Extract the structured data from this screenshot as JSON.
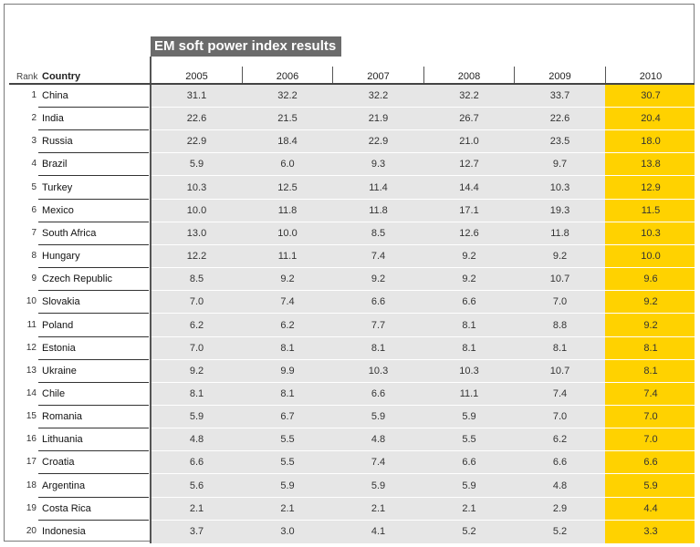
{
  "title": "EM soft power index results",
  "headers": {
    "rank": "Rank",
    "country": "Country"
  },
  "colors": {
    "title_bg": "#6b6b6b",
    "panel_grey": "#e6e6e6",
    "highlight": "#ffd200"
  },
  "chart_data": {
    "type": "table",
    "title": "EM soft power index results",
    "columns": [
      "Rank",
      "Country",
      "2005",
      "2006",
      "2007",
      "2008",
      "2009",
      "2010"
    ],
    "years": [
      "2005",
      "2006",
      "2007",
      "2008",
      "2009",
      "2010"
    ],
    "highlighted_column": "2010",
    "rows": [
      {
        "rank": "1",
        "country": "China",
        "values": [
          "31.1",
          "32.2",
          "32.2",
          "32.2",
          "33.7",
          "30.7"
        ]
      },
      {
        "rank": "2",
        "country": "India",
        "values": [
          "22.6",
          "21.5",
          "21.9",
          "26.7",
          "22.6",
          "20.4"
        ]
      },
      {
        "rank": "3",
        "country": "Russia",
        "values": [
          "22.9",
          "18.4",
          "22.9",
          "21.0",
          "23.5",
          "18.0"
        ]
      },
      {
        "rank": "4",
        "country": "Brazil",
        "values": [
          "5.9",
          "6.0",
          "9.3",
          "12.7",
          "9.7",
          "13.8"
        ]
      },
      {
        "rank": "5",
        "country": "Turkey",
        "values": [
          "10.3",
          "12.5",
          "11.4",
          "14.4",
          "10.3",
          "12.9"
        ]
      },
      {
        "rank": "6",
        "country": "Mexico",
        "values": [
          "10.0",
          "11.8",
          "11.8",
          "17.1",
          "19.3",
          "11.5"
        ]
      },
      {
        "rank": "7",
        "country": "South Africa",
        "values": [
          "13.0",
          "10.0",
          "8.5",
          "12.6",
          "11.8",
          "10.3"
        ]
      },
      {
        "rank": "8",
        "country": "Hungary",
        "values": [
          "12.2",
          "11.1",
          "7.4",
          "9.2",
          "9.2",
          "10.0"
        ]
      },
      {
        "rank": "9",
        "country": "Czech Republic",
        "values": [
          "8.5",
          "9.2",
          "9.2",
          "9.2",
          "10.7",
          "9.6"
        ]
      },
      {
        "rank": "10",
        "country": "Slovakia",
        "values": [
          "7.0",
          "7.4",
          "6.6",
          "6.6",
          "7.0",
          "9.2"
        ]
      },
      {
        "rank": "11",
        "country": "Poland",
        "values": [
          "6.2",
          "6.2",
          "7.7",
          "8.1",
          "8.8",
          "9.2"
        ]
      },
      {
        "rank": "12",
        "country": "Estonia",
        "values": [
          "7.0",
          "8.1",
          "8.1",
          "8.1",
          "8.1",
          "8.1"
        ]
      },
      {
        "rank": "13",
        "country": "Ukraine",
        "values": [
          "9.2",
          "9.9",
          "10.3",
          "10.3",
          "10.7",
          "8.1"
        ]
      },
      {
        "rank": "14",
        "country": "Chile",
        "values": [
          "8.1",
          "8.1",
          "6.6",
          "11.1",
          "7.4",
          "7.4"
        ]
      },
      {
        "rank": "15",
        "country": "Romania",
        "values": [
          "5.9",
          "6.7",
          "5.9",
          "5.9",
          "7.0",
          "7.0"
        ]
      },
      {
        "rank": "16",
        "country": "Lithuania",
        "values": [
          "4.8",
          "5.5",
          "4.8",
          "5.5",
          "6.2",
          "7.0"
        ]
      },
      {
        "rank": "17",
        "country": "Croatia",
        "values": [
          "6.6",
          "5.5",
          "7.4",
          "6.6",
          "6.6",
          "6.6"
        ]
      },
      {
        "rank": "18",
        "country": "Argentina",
        "values": [
          "5.6",
          "5.9",
          "5.9",
          "5.9",
          "4.8",
          "5.9"
        ]
      },
      {
        "rank": "19",
        "country": "Costa Rica",
        "values": [
          "2.1",
          "2.1",
          "2.1",
          "2.1",
          "2.9",
          "4.4"
        ]
      },
      {
        "rank": "20",
        "country": "Indonesia",
        "values": [
          "3.7",
          "3.0",
          "4.1",
          "5.2",
          "5.2",
          "3.3"
        ]
      }
    ]
  }
}
